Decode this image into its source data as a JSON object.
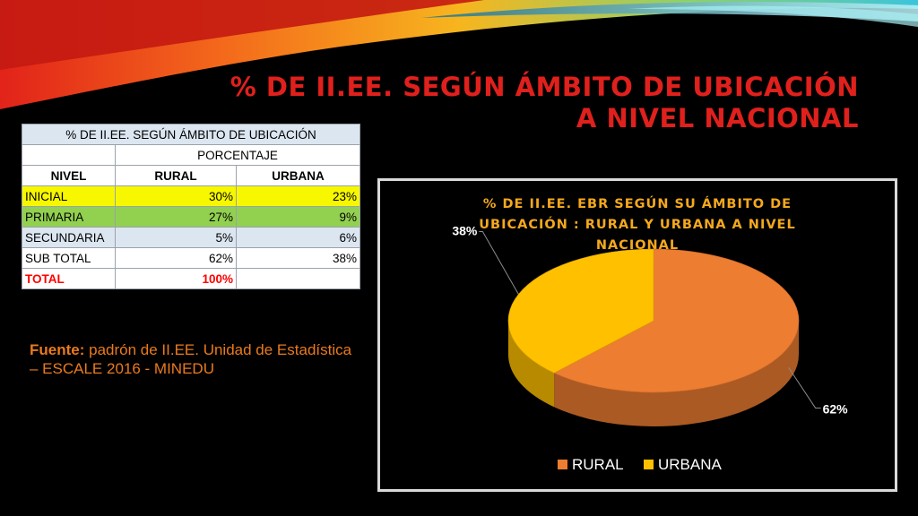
{
  "slide": {
    "title_line1": "% DE II.EE. SEGÚN ÁMBITO DE UBICACIÓN",
    "title_line2": "A NIVEL NACIONAL",
    "title_color": "#e0201c"
  },
  "table": {
    "title": "%  DE II.EE. SEGÚN ÁMBITO DE UBICACIÓN",
    "subheader": "PORCENTAJE",
    "columns": [
      "NIVEL",
      "RURAL",
      "URBANA"
    ],
    "rows": [
      {
        "nivel": "INICIAL",
        "rural": "30%",
        "urbana": "23%",
        "color": "#f7f700"
      },
      {
        "nivel": "PRIMARIA",
        "rural": "27%",
        "urbana": "9%",
        "color": "#92d050"
      },
      {
        "nivel": "SECUNDARIA",
        "rural": "5%",
        "urbana": "6%",
        "color": "#dce6f1"
      },
      {
        "nivel": "SUB TOTAL",
        "rural": "62%",
        "urbana": "38%",
        "color": "#ffffff"
      },
      {
        "nivel": "TOTAL",
        "rural": "100%",
        "urbana": "",
        "color": "#ffffff"
      }
    ]
  },
  "source": {
    "label": "Fuente:",
    "text": " padrón de II.EE. Unidad de Estadística – ESCALE 2016 - MINEDU"
  },
  "chart_data": {
    "type": "pie",
    "title_lines": [
      "% DE II.EE. EBR SEGÚN SU ÁMBITO DE",
      "UBICACIÓN : RURAL Y URBANA A NIVEL",
      "NACIONAL"
    ],
    "categories": [
      "RURAL",
      "URBANA"
    ],
    "values": [
      62,
      38
    ],
    "data_labels": [
      "62%",
      "38%"
    ],
    "colors": [
      "#ed7d31",
      "#ffc000"
    ],
    "legend_position": "bottom",
    "style": "3d"
  }
}
